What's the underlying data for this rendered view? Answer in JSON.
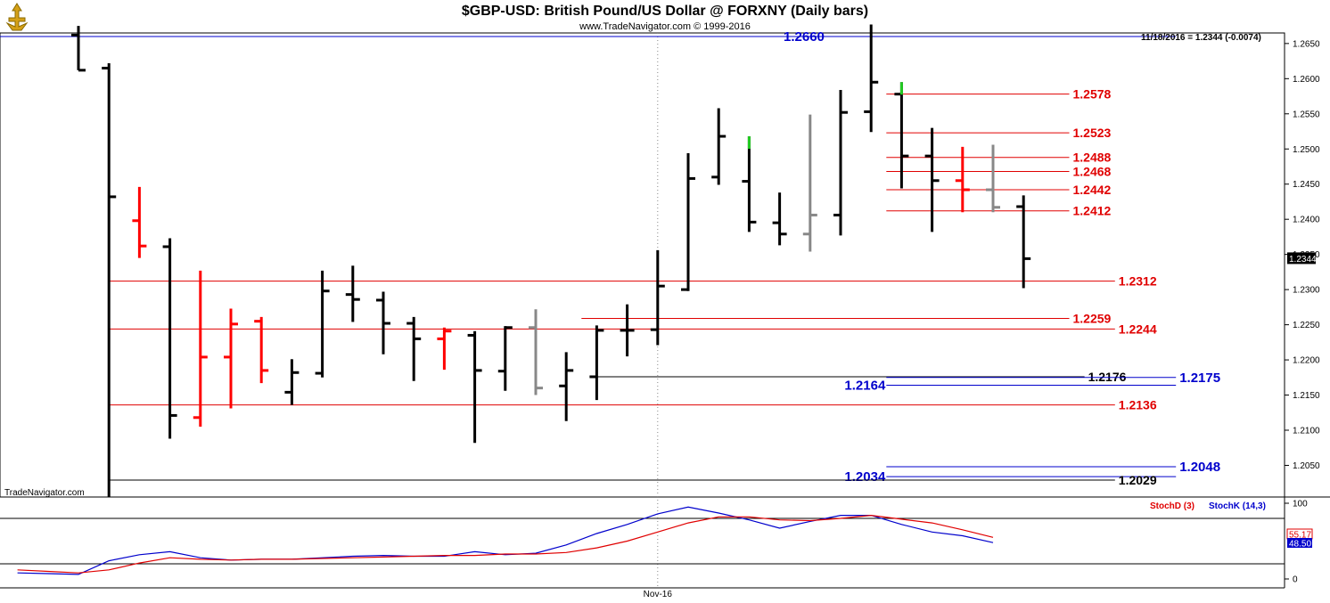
{
  "header": {
    "title": "$GBP-USD:  British Pound/US Dollar @ FORXNY  (Daily bars)",
    "subtitle": "www.TradeNavigator.com © 1999-2016",
    "watermark": "TradeNavigator.com"
  },
  "colors": {
    "up_bar": "#000000",
    "down_bar": "#ff0000",
    "neutral_bar": "#888888",
    "red_level": "#e00000",
    "blue_level": "#0000cc",
    "black_level": "#000000",
    "stoch_d": "#e00000",
    "stoch_k": "#0000cc"
  },
  "chart_data": {
    "type": "ohlc",
    "instrument": "$GBP-USD",
    "interval": "Daily bars",
    "y_axis": {
      "range": [
        1.2005,
        1.2665
      ],
      "ticks": [
        "1.2650",
        "1.2600",
        "1.2550",
        "1.2500",
        "1.2450",
        "1.2400",
        "1.2350",
        "1.2300",
        "1.2250",
        "1.2200",
        "1.2150",
        "1.2100",
        "1.2050"
      ]
    },
    "x_axis": {
      "labels": [
        {
          "label": "Nov-16",
          "bar_index": 19
        }
      ]
    },
    "last_bar_info": "11/18/2016 = 1.2344 (-0.0074)",
    "last_price": "1.2344",
    "bars": [
      {
        "o": 1.2662,
        "h": 1.2675,
        "l": 1.2612,
        "c": 1.2612,
        "color": "black"
      },
      {
        "o": 1.2615,
        "h": 1.2622,
        "l": 1.2005,
        "c": 1.2432,
        "color": "black"
      },
      {
        "o": 1.2398,
        "h": 1.2446,
        "l": 1.2345,
        "c": 1.2362,
        "color": "red"
      },
      {
        "o": 1.2361,
        "h": 1.2373,
        "l": 1.2088,
        "c": 1.2121,
        "color": "black"
      },
      {
        "o": 1.2118,
        "h": 1.2327,
        "l": 1.2105,
        "c": 1.2204,
        "color": "red"
      },
      {
        "o": 1.2204,
        "h": 1.2273,
        "l": 1.2131,
        "c": 1.2251,
        "color": "red"
      },
      {
        "o": 1.2255,
        "h": 1.2261,
        "l": 1.2167,
        "c": 1.2185,
        "color": "red"
      },
      {
        "o": 1.2154,
        "h": 1.2201,
        "l": 1.2136,
        "c": 1.2182,
        "color": "black"
      },
      {
        "o": 1.2181,
        "h": 1.2327,
        "l": 1.2175,
        "c": 1.2298,
        "color": "black"
      },
      {
        "o": 1.2293,
        "h": 1.2334,
        "l": 1.2254,
        "c": 1.2286,
        "color": "black"
      },
      {
        "o": 1.2285,
        "h": 1.2297,
        "l": 1.2208,
        "c": 1.2252,
        "color": "black"
      },
      {
        "o": 1.2252,
        "h": 1.2261,
        "l": 1.217,
        "c": 1.223,
        "color": "black"
      },
      {
        "o": 1.223,
        "h": 1.2246,
        "l": 1.2186,
        "c": 1.2241,
        "color": "red"
      },
      {
        "o": 1.2235,
        "h": 1.2241,
        "l": 1.2082,
        "c": 1.2185,
        "color": "black"
      },
      {
        "o": 1.2184,
        "h": 1.2248,
        "l": 1.2156,
        "c": 1.2246,
        "color": "black"
      },
      {
        "o": 1.2246,
        "h": 1.2272,
        "l": 1.215,
        "c": 1.216,
        "color": "gray"
      },
      {
        "o": 1.2163,
        "h": 1.2211,
        "l": 1.2113,
        "c": 1.2185,
        "color": "black"
      },
      {
        "o": 1.2176,
        "h": 1.2249,
        "l": 1.2143,
        "c": 1.2242,
        "color": "black"
      },
      {
        "o": 1.2242,
        "h": 1.2279,
        "l": 1.2205,
        "c": 1.2242,
        "color": "black"
      },
      {
        "o": 1.2243,
        "h": 1.2356,
        "l": 1.2221,
        "c": 1.2305,
        "color": "black"
      },
      {
        "o": 1.23,
        "h": 1.2494,
        "l": 1.2298,
        "c": 1.2458,
        "color": "black"
      },
      {
        "o": 1.246,
        "h": 1.2558,
        "l": 1.2449,
        "c": 1.2518,
        "color": "black"
      },
      {
        "o": 1.2454,
        "h": 1.2518,
        "l": 1.2382,
        "c": 1.2396,
        "color": "black",
        "high_marker": "green"
      },
      {
        "o": 1.2395,
        "h": 1.2438,
        "l": 1.2363,
        "c": 1.2379,
        "color": "black"
      },
      {
        "o": 1.2379,
        "h": 1.2549,
        "l": 1.2354,
        "c": 1.2406,
        "color": "gray"
      },
      {
        "o": 1.2406,
        "h": 1.2584,
        "l": 1.2377,
        "c": 1.2552,
        "color": "black"
      },
      {
        "o": 1.2553,
        "h": 1.2677,
        "l": 1.2524,
        "c": 1.2595,
        "color": "black"
      },
      {
        "o": 1.2578,
        "h": 1.2595,
        "l": 1.2444,
        "c": 1.249,
        "color": "black",
        "high_marker": "green"
      },
      {
        "o": 1.249,
        "h": 1.253,
        "l": 1.2382,
        "c": 1.2455,
        "color": "black"
      },
      {
        "o": 1.2455,
        "h": 1.2503,
        "l": 1.241,
        "c": 1.2442,
        "color": "red"
      },
      {
        "o": 1.2442,
        "h": 1.2506,
        "l": 1.241,
        "c": 1.2417,
        "color": "gray"
      },
      {
        "o": 1.2418,
        "h": 1.2434,
        "l": 1.2302,
        "c": 1.2344,
        "color": "black"
      }
    ],
    "levels": [
      {
        "value": 1.266,
        "label": "1.2660",
        "color": "blue",
        "from_bar": 0,
        "to_bar": 36,
        "label_side": "left",
        "label_bar": 24.5,
        "size": "big"
      },
      {
        "value": 1.2578,
        "label": "1.2578",
        "color": "red",
        "from_bar": 26.5,
        "to_bar": 32.5,
        "label_side": "right",
        "size": "small"
      },
      {
        "value": 1.2523,
        "label": "1.2523",
        "color": "red",
        "from_bar": 26.5,
        "to_bar": 32.5,
        "label_side": "right",
        "size": "small"
      },
      {
        "value": 1.2488,
        "label": "1.2488",
        "color": "red",
        "from_bar": 26.5,
        "to_bar": 32.5,
        "label_side": "right",
        "size": "small"
      },
      {
        "value": 1.2468,
        "label": "1.2468",
        "color": "red",
        "from_bar": 26.5,
        "to_bar": 32.5,
        "label_side": "right",
        "size": "small"
      },
      {
        "value": 1.2442,
        "label": "1.2442",
        "color": "red",
        "from_bar": 26.5,
        "to_bar": 32.5,
        "label_side": "right",
        "size": "small"
      },
      {
        "value": 1.2412,
        "label": "1.2412",
        "color": "red",
        "from_bar": 26.5,
        "to_bar": 32.5,
        "label_side": "right",
        "size": "small"
      },
      {
        "value": 1.2312,
        "label": "1.2312",
        "color": "red",
        "from_bar": 1,
        "to_bar": 34,
        "label_side": "right",
        "size": "small"
      },
      {
        "value": 1.2259,
        "label": "1.2259",
        "color": "red",
        "from_bar": 16.5,
        "to_bar": 32.5,
        "label_side": "right",
        "size": "small"
      },
      {
        "value": 1.2244,
        "label": "1.2244",
        "color": "red",
        "from_bar": 1,
        "to_bar": 34,
        "label_side": "right",
        "size": "small"
      },
      {
        "value": 1.2176,
        "label": "1.2176",
        "color": "black",
        "from_bar": 17,
        "to_bar": 33,
        "label_side": "right",
        "size": "small"
      },
      {
        "value": 1.2175,
        "label": "1.2175",
        "color": "blue",
        "from_bar": 26.5,
        "to_bar": 36,
        "label_side": "right",
        "size": "big"
      },
      {
        "value": 1.2164,
        "label": "1.2164",
        "color": "blue",
        "from_bar": 26.5,
        "to_bar": 36,
        "label_side": "left",
        "label_bar": 26.5,
        "size": "big"
      },
      {
        "value": 1.2136,
        "label": "1.2136",
        "color": "red",
        "from_bar": 1,
        "to_bar": 34,
        "label_side": "right",
        "size": "small"
      },
      {
        "value": 1.2048,
        "label": "1.2048",
        "color": "blue",
        "from_bar": 26.5,
        "to_bar": 36,
        "label_side": "right",
        "size": "big"
      },
      {
        "value": 1.2034,
        "label": "1.2034",
        "color": "blue",
        "from_bar": 26.5,
        "to_bar": 36,
        "label_side": "left",
        "label_bar": 26.5,
        "size": "big"
      },
      {
        "value": 1.2029,
        "label": "1.2029",
        "color": "black",
        "from_bar": 1,
        "to_bar": 34,
        "label_side": "right",
        "size": "small"
      }
    ],
    "stochastic": {
      "range": [
        0,
        100
      ],
      "ticks": [
        "100",
        "0"
      ],
      "ref_lines": [
        80,
        20
      ],
      "legend_d": "StochD (3)",
      "legend_k": "StochK (14,3)",
      "last_d": "55.17",
      "last_k": "48.50",
      "x_start": -2,
      "d_values": [
        12,
        10,
        8,
        12,
        21,
        28,
        26,
        25,
        26,
        26,
        27,
        28,
        29,
        30,
        31,
        31,
        33,
        33,
        35,
        41,
        50,
        62,
        74,
        82,
        82,
        78,
        77,
        80,
        84,
        79,
        74,
        65,
        55
      ],
      "k_values": [
        8,
        7,
        6,
        24,
        32,
        36,
        28,
        25,
        26,
        26,
        28,
        30,
        31,
        30,
        30,
        36,
        32,
        34,
        45,
        60,
        72,
        86,
        95,
        87,
        78,
        67,
        76,
        84,
        84,
        72,
        62,
        57,
        48
      ]
    }
  }
}
